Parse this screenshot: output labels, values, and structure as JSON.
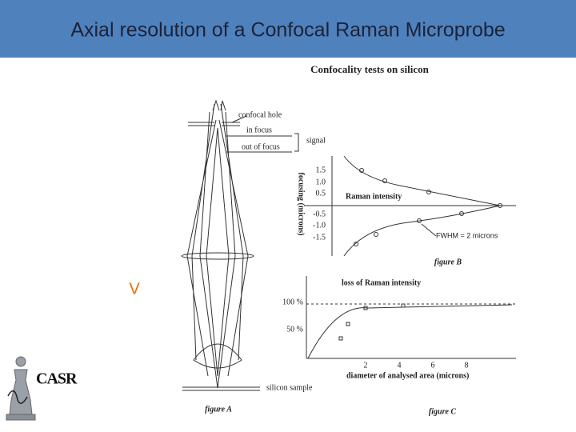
{
  "header": {
    "title": "Axial resolution of a Confocal Raman Microprobe"
  },
  "figure_title": "Confocality tests on silicon",
  "figure_a": {
    "labels": [
      "confocal hole",
      "in focus",
      "out of focus",
      "signal",
      "silicon sample"
    ],
    "caption": "figure A"
  },
  "figure_b": {
    "y_label": "focusing (microns)",
    "yticks": [
      "1.5",
      "1.0",
      "0.5",
      "-0.5",
      "-1.0",
      "-1.5"
    ],
    "curve_label": "Raman intensity",
    "fwhm": "FWHM = 2 microns",
    "caption": "figure B"
  },
  "figure_c": {
    "title": "loss of Raman intensity",
    "yticks": [
      "100 %",
      "50 %"
    ],
    "xticks": [
      "2",
      "4",
      "6",
      "8"
    ],
    "x_label": "diameter of analysed area (microns)",
    "caption": "figure C"
  },
  "marker": "V",
  "logo": {
    "text": "CASR"
  }
}
